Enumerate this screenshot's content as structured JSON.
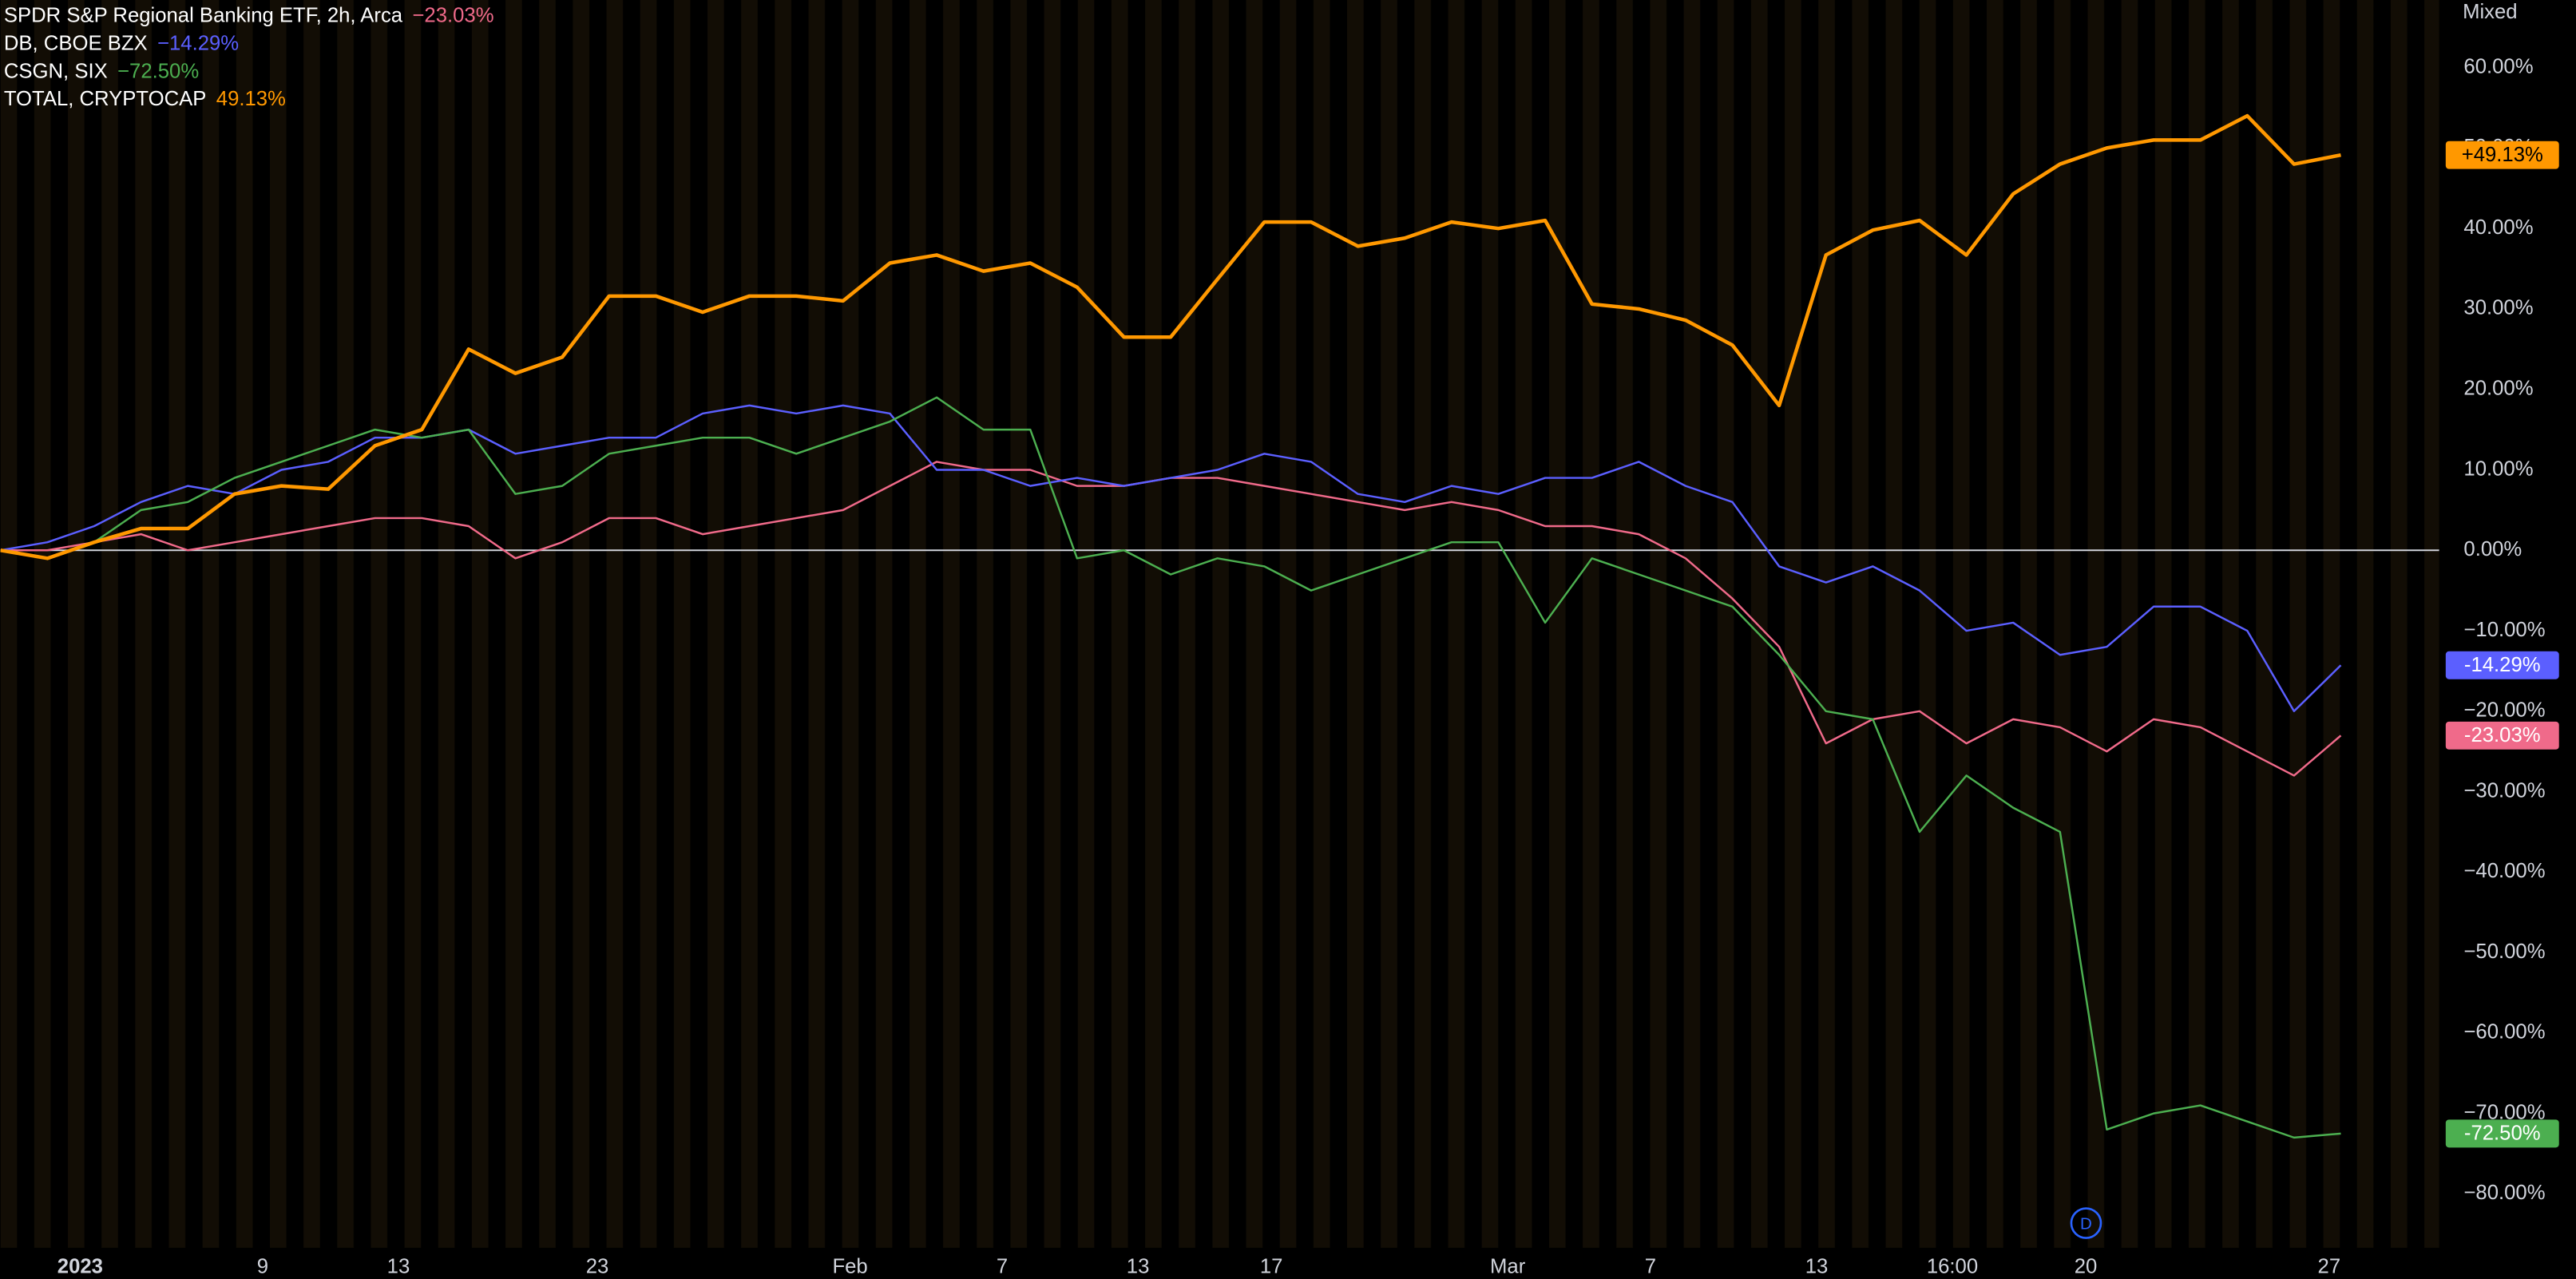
{
  "chart_data": {
    "type": "line",
    "scale_mode": "Mixed",
    "event_marker": "D",
    "baseline": 0,
    "x": [
      0,
      2,
      4,
      6,
      8,
      10,
      12,
      14,
      16,
      18,
      20,
      22,
      24,
      26,
      28,
      30,
      32,
      34,
      36,
      38,
      40,
      42,
      44,
      46,
      48,
      50,
      52,
      54,
      56,
      58,
      60,
      62,
      64,
      66,
      68,
      70,
      72,
      74,
      76,
      78,
      80,
      82,
      84,
      86,
      88,
      90,
      92,
      94,
      96,
      98,
      100
    ],
    "xlim": [
      0,
      104.2
    ],
    "xticks": [
      {
        "value": 3.4,
        "label": "2023"
      },
      {
        "value": 11.2,
        "label": "9"
      },
      {
        "value": 17,
        "label": "13"
      },
      {
        "value": 25.5,
        "label": "23"
      },
      {
        "value": 36.3,
        "label": "Feb"
      },
      {
        "value": 42.8,
        "label": "7"
      },
      {
        "value": 48.6,
        "label": "13"
      },
      {
        "value": 54.3,
        "label": "17"
      },
      {
        "value": 64.4,
        "label": "Mar"
      },
      {
        "value": 70.5,
        "label": "7"
      },
      {
        "value": 77.6,
        "label": "13"
      },
      {
        "value": 83.4,
        "label": "16:00"
      },
      {
        "value": 89.1,
        "label": "20"
      },
      {
        "value": 99.5,
        "label": "27"
      }
    ],
    "ylim": [
      -86.7,
      68.4
    ],
    "yticks": [
      {
        "value": 60,
        "label": "60.00%"
      },
      {
        "value": 50,
        "label": "50.00%"
      },
      {
        "value": 40,
        "label": "40.00%"
      },
      {
        "value": 30,
        "label": "30.00%"
      },
      {
        "value": 20,
        "label": "20.00%"
      },
      {
        "value": 10,
        "label": "10.00%"
      },
      {
        "value": 0,
        "label": "0.00%"
      },
      {
        "value": -10,
        "label": "−10.00%"
      },
      {
        "value": -20,
        "label": "−20.00%"
      },
      {
        "value": -30,
        "label": "−30.00%"
      },
      {
        "value": -40,
        "label": "−40.00%"
      },
      {
        "value": -50,
        "label": "−50.00%"
      },
      {
        "value": -60,
        "label": "−60.00%"
      },
      {
        "value": -70,
        "label": "−70.00%"
      },
      {
        "value": -80,
        "label": "−80.00%"
      }
    ],
    "series": [
      {
        "name": "SPDR S&P Regional Banking ETF, 2h, Arca",
        "color": "#f06a8a",
        "width": 1.2,
        "change": -23.03,
        "change_label": "−23.03%",
        "badge_label": "-23.03%",
        "values": [
          0,
          0,
          1,
          2,
          0,
          1,
          2,
          3,
          4,
          4,
          3,
          -1,
          1,
          4,
          4,
          2,
          3,
          4,
          5,
          8,
          11,
          10,
          10,
          8,
          8,
          9,
          9,
          8,
          7,
          6,
          5,
          6,
          5,
          3,
          3,
          2,
          -1,
          -6,
          -12,
          -24,
          -21,
          -20,
          -24,
          -21,
          -22,
          -25,
          -21,
          -22,
          -25,
          -28,
          -23.03
        ]
      },
      {
        "name": "DB, CBOE BZX",
        "color": "#5b5fff",
        "width": 1.2,
        "change": -14.29,
        "change_label": "−14.29%",
        "badge_label": "-14.29%",
        "values": [
          0,
          1,
          3,
          6,
          8,
          7,
          10,
          11,
          14,
          14,
          15,
          12,
          13,
          14,
          14,
          17,
          18,
          17,
          18,
          17,
          10,
          10,
          8,
          9,
          8,
          9,
          10,
          12,
          11,
          7,
          6,
          8,
          7,
          9,
          9,
          11,
          8,
          6,
          -2,
          -4,
          -2,
          -5,
          -10,
          -9,
          -13,
          -12,
          -7,
          -7,
          -10,
          -20,
          -14.29
        ]
      },
      {
        "name": "CSGN, SIX",
        "color": "#4caf50",
        "width": 1.2,
        "change": -72.5,
        "change_label": "−72.50%",
        "badge_label": "-72.50%",
        "values": [
          0,
          -1,
          1,
          5,
          6,
          9,
          11,
          13,
          15,
          14,
          15,
          7,
          8,
          12,
          13,
          14,
          14,
          12,
          14,
          16,
          19,
          15,
          15,
          -1,
          0,
          -3,
          -1,
          -2,
          -5,
          -3,
          -1,
          1,
          1,
          -9,
          -1,
          -3,
          -5,
          -7,
          -13,
          -20,
          -21,
          -35,
          -28,
          -32,
          -35,
          -72,
          -70,
          -69,
          -71,
          -73,
          -72.5
        ]
      },
      {
        "name": "TOTAL, CRYPTOCAP",
        "color": "#ff9800",
        "width": 2.2,
        "change": 49.13,
        "change_label": "49.13%",
        "badge_label": "+49.13%",
        "values": [
          0,
          -1,
          1,
          2.7,
          2.7,
          7,
          8,
          7.6,
          13,
          15,
          25,
          22,
          24,
          31.6,
          31.6,
          29.6,
          31.6,
          31.6,
          31,
          35.7,
          36.7,
          34.7,
          35.7,
          32.7,
          26.5,
          26.5,
          33.7,
          40.8,
          40.8,
          37.8,
          38.8,
          40.8,
          40,
          41,
          30.6,
          30,
          28.6,
          25.5,
          18,
          36.7,
          39.8,
          41,
          36.7,
          44.3,
          48,
          50,
          51,
          51,
          54,
          48,
          49.13
        ]
      }
    ]
  }
}
